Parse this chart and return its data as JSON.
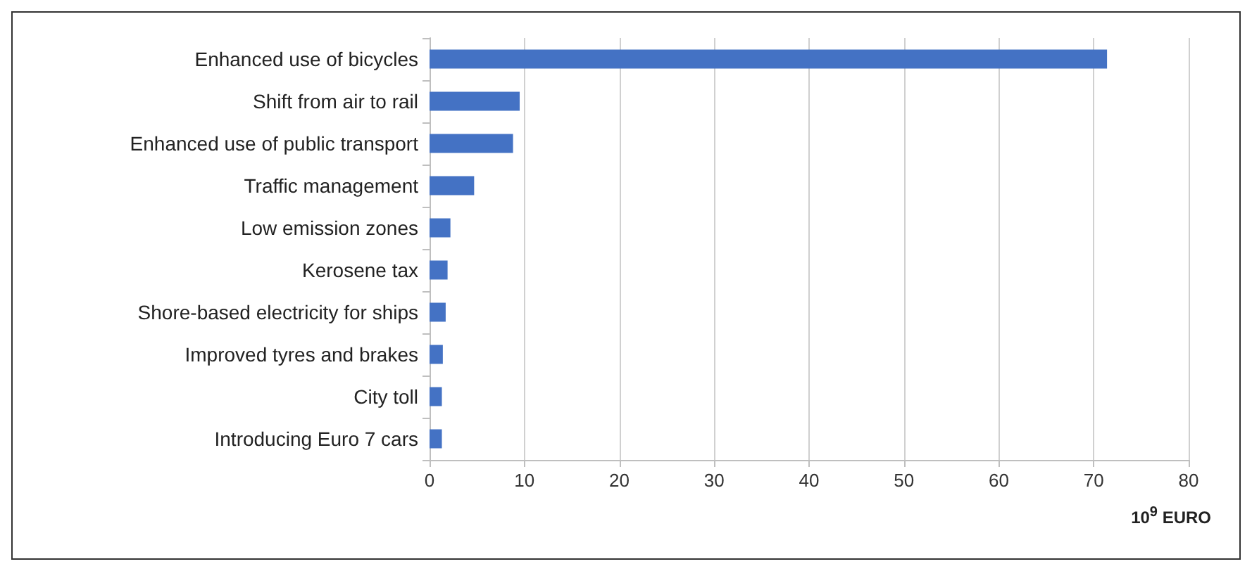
{
  "chart_data": {
    "type": "bar",
    "orientation": "horizontal",
    "xlabel": "10$^{9}$ EURO",
    "categories": [
      "Enhanced use of bicycles",
      "Shift from air to rail",
      "Enhanced use of public transport",
      "Traffic management",
      "Low emission zones",
      "Kerosene tax",
      "Shore-based electricity for ships",
      "Improved tyres and brakes",
      "City toll",
      "Introducing Euro 7 cars"
    ],
    "values": [
      71.4,
      9.5,
      8.8,
      4.7,
      2.2,
      1.9,
      1.7,
      1.4,
      1.3,
      1.3
    ],
    "color": "#4472c4",
    "xlim": [
      0,
      80
    ],
    "xticks": [
      0,
      10,
      20,
      30,
      40,
      50,
      60,
      70,
      80
    ],
    "grid": "x"
  }
}
